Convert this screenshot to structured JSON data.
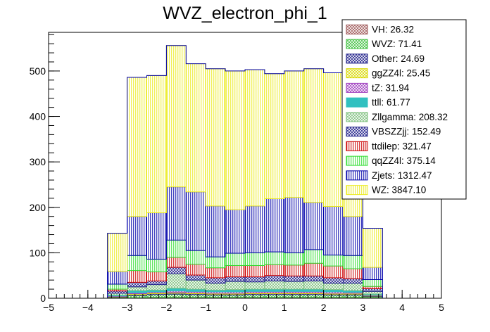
{
  "chart_data": {
    "type": "bar",
    "subtype": "stacked-histogram",
    "title": "WVZ_electron_phi_1",
    "xlim": [
      -5,
      5
    ],
    "ylim": [
      0,
      585
    ],
    "x_ticks": [
      -5,
      -4,
      -3,
      -2,
      -1,
      0,
      1,
      2,
      3,
      4,
      5
    ],
    "y_ticks": [
      0,
      100,
      200,
      300,
      400,
      500
    ],
    "bin_edges": [
      -3.5,
      -3.0,
      -2.5,
      -2.0,
      -1.5,
      -1.0,
      -0.5,
      0.0,
      0.5,
      1.0,
      1.5,
      2.0,
      2.5,
      3.0,
      3.5
    ],
    "legend_position": "top-right",
    "series": [
      {
        "name": "VH",
        "label": "VH: 26.32",
        "color": "#a05a5a",
        "hatch": "cross",
        "values": [
          1,
          1,
          2,
          2,
          2,
          2,
          2,
          2,
          2,
          2,
          2,
          2,
          2,
          2
        ]
      },
      {
        "name": "WVZ",
        "label": "WVZ: 71.41",
        "color": "#40c040",
        "hatch": "cross",
        "values": [
          1,
          5,
          6,
          7,
          6,
          5,
          5,
          6,
          6,
          6,
          6,
          5,
          5,
          2
        ]
      },
      {
        "name": "Other",
        "label": "Other: 24.69",
        "color": "#20208a",
        "hatch": "cross",
        "values": [
          1,
          2,
          2,
          2,
          2,
          2,
          2,
          2,
          2,
          2,
          2,
          2,
          2,
          1
        ]
      },
      {
        "name": "ggZZ4l",
        "label": "ggZZ4l: 25.45",
        "color": "#d8d800",
        "hatch": "cross",
        "values": [
          1,
          2,
          2,
          2,
          2,
          2,
          2,
          2,
          2,
          2,
          2,
          2,
          2,
          1
        ]
      },
      {
        "name": "tZ",
        "label": "tZ: 31.94",
        "color": "#a040c0",
        "hatch": "cross",
        "values": [
          1,
          2,
          2,
          3,
          3,
          3,
          3,
          3,
          3,
          3,
          3,
          3,
          2,
          1
        ]
      },
      {
        "name": "ttll",
        "label": "ttll: 61.77",
        "color": "#30c0c0",
        "hatch": "solid",
        "values": [
          2,
          5,
          4,
          6,
          5,
          4,
          5,
          5,
          5,
          5,
          5,
          5,
          4,
          2
        ]
      },
      {
        "name": "Zllgamma",
        "label": "Zllgamma: 208.32",
        "color": "#7ec07e",
        "hatch": "cross",
        "values": [
          4,
          8,
          12,
          32,
          20,
          15,
          18,
          16,
          18,
          17,
          18,
          14,
          16,
          6
        ]
      },
      {
        "name": "VBSZZjj",
        "label": "VBSZZjj: 152.49",
        "color": "#20208a",
        "hatch": "cross",
        "values": [
          5,
          10,
          8,
          14,
          11,
          12,
          10,
          11,
          12,
          12,
          11,
          12,
          10,
          6
        ]
      },
      {
        "name": "ttdilep",
        "label": "ttdilep: 321.47",
        "color": "#cc0000",
        "hatch": "vertical",
        "values": [
          4,
          26,
          20,
          22,
          24,
          22,
          25,
          25,
          24,
          24,
          28,
          26,
          22,
          5
        ]
      },
      {
        "name": "qqZZ4l",
        "label": "qqZZ4l: 375.14",
        "color": "#33dd33",
        "hatch": "vertical",
        "values": [
          11,
          33,
          28,
          38,
          30,
          24,
          27,
          28,
          28,
          27,
          30,
          24,
          29,
          15
        ]
      },
      {
        "name": "Zjets",
        "label": "Zjets: 1312.47",
        "color": "#0000aa",
        "hatch": "vertical",
        "values": [
          28,
          86,
          102,
          117,
          129,
          112,
          96,
          103,
          117,
          122,
          104,
          107,
          86,
          27
        ]
      },
      {
        "name": "WZ",
        "label": "WZ: 3847.10",
        "color": "#ecec20",
        "hatch": "vertical",
        "values": [
          84,
          306,
          302,
          311,
          282,
          302,
          305,
          300,
          275,
          278,
          294,
          294,
          305,
          86
        ]
      }
    ]
  }
}
